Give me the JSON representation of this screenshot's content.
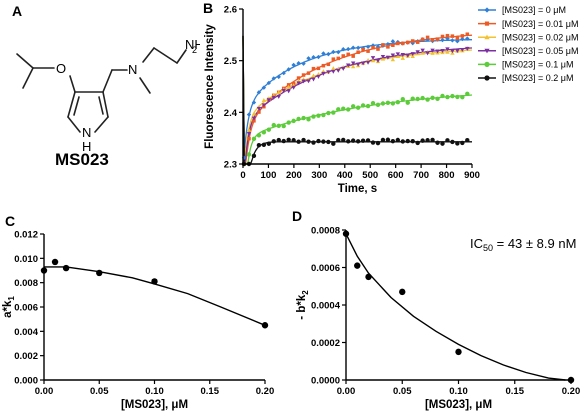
{
  "panels": {
    "A": {
      "letter": "A",
      "compound_name": "MS023",
      "atom_labels": {
        "oxygen": "O",
        "nitrogen": "N",
        "amine": "NH",
        "amine_sub": "2",
        "ring_nh": "N",
        "ring_h": "H"
      }
    },
    "B": {
      "letter": "B"
    },
    "C": {
      "letter": "C"
    },
    "D": {
      "letter": "D",
      "annotation": {
        "prefix": "IC",
        "subscript": "50",
        "suffix": " = 43 ± 8.9 nM"
      }
    }
  },
  "chart_data": [
    {
      "id": "B",
      "type": "scatter",
      "xlabel": "Time, s",
      "ylabel": "Fluorescence Intensity",
      "xlim": [
        0,
        900
      ],
      "ylim": [
        2.3,
        2.6
      ],
      "xticks": [
        "0",
        "100",
        "200",
        "300",
        "400",
        "500",
        "600",
        "700",
        "800",
        "900"
      ],
      "yticks": [
        "2.3",
        "2.4",
        "2.5",
        "2.6"
      ],
      "legend_position": "right",
      "series": [
        {
          "name": "[MS023] = 0 μM",
          "color": "#2f7fd6",
          "marker": "diamond",
          "fit": {
            "a": 2.543,
            "A1": 0.12,
            "k1": 0.06,
            "A2": 0.135,
            "k2": 0.0045
          }
        },
        {
          "name": "[MS023] = 0.01 μM",
          "color": "#ee5a24",
          "marker": "square",
          "fit": {
            "a": 2.56,
            "A1": 0.15,
            "k1": 0.06,
            "A2": 0.19,
            "k2": 0.0032
          }
        },
        {
          "name": "[MS023] = 0.02 μM",
          "color": "#f2c230",
          "marker": "triangle",
          "fit": {
            "a": 2.53,
            "A1": 0.14,
            "k1": 0.065,
            "A2": 0.14,
            "k2": 0.003
          }
        },
        {
          "name": "[MS023] = 0.05 μM",
          "color": "#7b2fa0",
          "marker": "triangle-down",
          "fit": {
            "a": 2.535,
            "A1": 0.145,
            "k1": 0.065,
            "A2": 0.155,
            "k2": 0.003
          }
        },
        {
          "name": "[MS023] = 0.1 μM",
          "color": "#5ccc3a",
          "marker": "circle",
          "fit": {
            "a": 2.45,
            "A1": 0.2,
            "k1": 0.07,
            "A2": 0.1,
            "k2": 0.002
          }
        },
        {
          "name": "[MS023] = 0.2 μM",
          "color": "#111111",
          "marker": "circle",
          "fit": {
            "a": 2.343,
            "A1": 0.207,
            "k1": 0.05,
            "A2": 0.0,
            "k2": 0.01
          }
        }
      ]
    },
    {
      "id": "C",
      "type": "scatter",
      "xlabel": "[MS023], μM",
      "ylabel": "a*k",
      "ylabel_sub": "1",
      "xlim": [
        0,
        0.2
      ],
      "ylim": [
        0,
        0.012
      ],
      "xticks": [
        "0.00",
        "0.05",
        "0.10",
        "0.15",
        "0.20"
      ],
      "yticks": [
        "0.000",
        "0.002",
        "0.004",
        "0.006",
        "0.008",
        "0.010",
        "0.012"
      ],
      "points": {
        "x": [
          0,
          0.01,
          0.02,
          0.05,
          0.1,
          0.2
        ],
        "y": [
          0.009,
          0.0097,
          0.0092,
          0.0088,
          0.0081,
          0.0045
        ]
      },
      "fit": {
        "x": [
          0,
          0.02,
          0.05,
          0.08,
          0.1,
          0.13,
          0.16,
          0.2
        ],
        "y": [
          0.0093,
          0.0093,
          0.0089,
          0.0084,
          0.0079,
          0.0071,
          0.006,
          0.0045
        ]
      }
    },
    {
      "id": "D",
      "type": "scatter",
      "xlabel": "[MS023], μM",
      "ylabel": "- b*k",
      "ylabel_sub": "2",
      "xlim": [
        0,
        0.2
      ],
      "ylim": [
        0,
        0.0008
      ],
      "xticks": [
        "0.00",
        "0.05",
        "0.10",
        "0.15",
        "0.20"
      ],
      "yticks": [
        "0.0000",
        "0.0002",
        "0.0004",
        "0.0006",
        "0.0008"
      ],
      "points": {
        "x": [
          0,
          0.01,
          0.02,
          0.05,
          0.1,
          0.2
        ],
        "y": [
          0.00078,
          0.00061,
          0.00055,
          0.00047,
          0.00015,
          0.0
        ]
      },
      "fit": {
        "x": [
          0,
          0.01,
          0.02,
          0.04,
          0.06,
          0.08,
          0.1,
          0.12,
          0.14,
          0.16,
          0.18,
          0.195
        ],
        "y": [
          0.00078,
          0.00066,
          0.00057,
          0.00044,
          0.00034,
          0.00026,
          0.00019,
          0.00013,
          8e-05,
          4e-05,
          1e-05,
          0.0
        ]
      }
    }
  ]
}
